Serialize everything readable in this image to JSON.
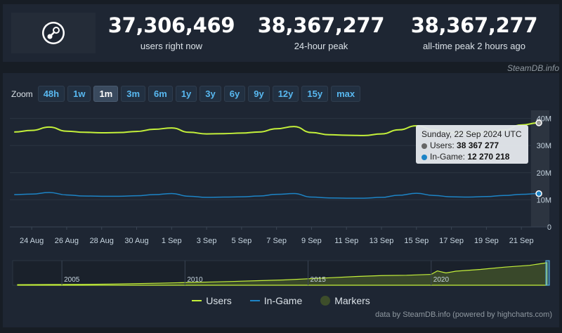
{
  "stats": [
    {
      "value": "37,306,469",
      "label": "users right now"
    },
    {
      "value": "38,367,277",
      "label": "24-hour peak"
    },
    {
      "value": "38,367,277",
      "label": "all-time peak 2 hours ago"
    }
  ],
  "credit_top": "SteamDB.info",
  "zoom": {
    "label": "Zoom",
    "buttons": [
      "48h",
      "1w",
      "1m",
      "3m",
      "6m",
      "1y",
      "3y",
      "6y",
      "9y",
      "12y",
      "15y",
      "max"
    ],
    "active": "1m"
  },
  "tooltip": {
    "title": "Sunday, 22 Sep 2024 UTC",
    "users_label": "Users:",
    "users_value": "38 367 277",
    "ingame_label": "In-Game:",
    "ingame_value": "12 270 218"
  },
  "legend": {
    "users": "Users",
    "ingame": "In-Game",
    "markers": "Markers"
  },
  "credit_bottom": "data by SteamDB.info (powered by highcharts.com)",
  "colors": {
    "users": "#c4f03a",
    "ingame": "#1d84c6",
    "markers": "#3d4d2a",
    "accent": "#58b8f0"
  },
  "chart_data": {
    "type": "line",
    "y_ticks": [
      "0",
      "10M",
      "20M",
      "30M",
      "40M"
    ],
    "ylim": [
      0,
      43000000
    ],
    "x_ticks": [
      "24 Aug",
      "26 Aug",
      "28 Aug",
      "30 Aug",
      "1 Sep",
      "3 Sep",
      "5 Sep",
      "7 Sep",
      "9 Sep",
      "11 Sep",
      "13 Sep",
      "15 Sep",
      "17 Sep",
      "19 Sep",
      "21 Sep"
    ],
    "series": [
      {
        "name": "Users",
        "points": [
          [
            "23 Aug",
            35000000
          ],
          [
            "24 Aug",
            35600000
          ],
          [
            "25 Aug",
            36800000
          ],
          [
            "26 Aug",
            35300000
          ],
          [
            "27 Aug",
            34900000
          ],
          [
            "28 Aug",
            34700000
          ],
          [
            "29 Aug",
            34800000
          ],
          [
            "30 Aug",
            35200000
          ],
          [
            "31 Aug",
            36000000
          ],
          [
            "1 Sep",
            36500000
          ],
          [
            "2 Sep",
            34900000
          ],
          [
            "3 Sep",
            34300000
          ],
          [
            "4 Sep",
            34400000
          ],
          [
            "5 Sep",
            34600000
          ],
          [
            "6 Sep",
            35000000
          ],
          [
            "7 Sep",
            36200000
          ],
          [
            "8 Sep",
            37000000
          ],
          [
            "9 Sep",
            34800000
          ],
          [
            "10 Sep",
            34000000
          ],
          [
            "11 Sep",
            33800000
          ],
          [
            "12 Sep",
            33700000
          ],
          [
            "13 Sep",
            34300000
          ],
          [
            "14 Sep",
            35800000
          ],
          [
            "15 Sep",
            37300000
          ],
          [
            "16 Sep",
            35800000
          ],
          [
            "17 Sep",
            34800000
          ],
          [
            "18 Sep",
            34600000
          ],
          [
            "19 Sep",
            35000000
          ],
          [
            "20 Sep",
            35700000
          ],
          [
            "21 Sep",
            37600000
          ],
          [
            "22 Sep",
            38367277
          ]
        ]
      },
      {
        "name": "In-Game",
        "points": [
          [
            "23 Aug",
            11900000
          ],
          [
            "24 Aug",
            12100000
          ],
          [
            "25 Aug",
            12700000
          ],
          [
            "26 Aug",
            11800000
          ],
          [
            "27 Aug",
            11400000
          ],
          [
            "28 Aug",
            11300000
          ],
          [
            "29 Aug",
            11300000
          ],
          [
            "30 Aug",
            11500000
          ],
          [
            "31 Aug",
            11900000
          ],
          [
            "1 Sep",
            12300000
          ],
          [
            "2 Sep",
            11300000
          ],
          [
            "3 Sep",
            10900000
          ],
          [
            "4 Sep",
            11000000
          ],
          [
            "5 Sep",
            11100000
          ],
          [
            "6 Sep",
            11400000
          ],
          [
            "7 Sep",
            12000000
          ],
          [
            "8 Sep",
            12300000
          ],
          [
            "9 Sep",
            11000000
          ],
          [
            "10 Sep",
            10700000
          ],
          [
            "11 Sep",
            10600000
          ],
          [
            "12 Sep",
            10600000
          ],
          [
            "13 Sep",
            10900000
          ],
          [
            "14 Sep",
            11700000
          ],
          [
            "15 Sep",
            12400000
          ],
          [
            "16 Sep",
            11600000
          ],
          [
            "17 Sep",
            11100000
          ],
          [
            "18 Sep",
            11000000
          ],
          [
            "19 Sep",
            11200000
          ],
          [
            "20 Sep",
            11600000
          ],
          [
            "21 Sep",
            12000000
          ],
          [
            "22 Sep",
            12270218
          ]
        ]
      }
    ],
    "navigator": {
      "year_labels": [
        "2005",
        "2010",
        "2015",
        "2020"
      ],
      "x_range": [
        2003,
        2024.8
      ],
      "values": [
        [
          2003.2,
          1.0
        ],
        [
          2004.5,
          1.2
        ],
        [
          2005.8,
          1.4
        ],
        [
          2007,
          2.0
        ],
        [
          2008,
          2.8
        ],
        [
          2009,
          3.5
        ],
        [
          2010,
          4.5
        ],
        [
          2011,
          5.5
        ],
        [
          2012,
          6.5
        ],
        [
          2013,
          7.8
        ],
        [
          2014,
          9.0
        ],
        [
          2015,
          11.0
        ],
        [
          2016,
          13.0
        ],
        [
          2017,
          15.0
        ],
        [
          2018,
          16.5
        ],
        [
          2019,
          17.0
        ],
        [
          2020,
          18.5
        ],
        [
          2020.25,
          24.5
        ],
        [
          2020.6,
          21.0
        ],
        [
          2021,
          24.0
        ],
        [
          2022,
          27.0
        ],
        [
          2023,
          31.0
        ],
        [
          2024,
          34.0
        ],
        [
          2024.7,
          38.4
        ]
      ]
    }
  }
}
